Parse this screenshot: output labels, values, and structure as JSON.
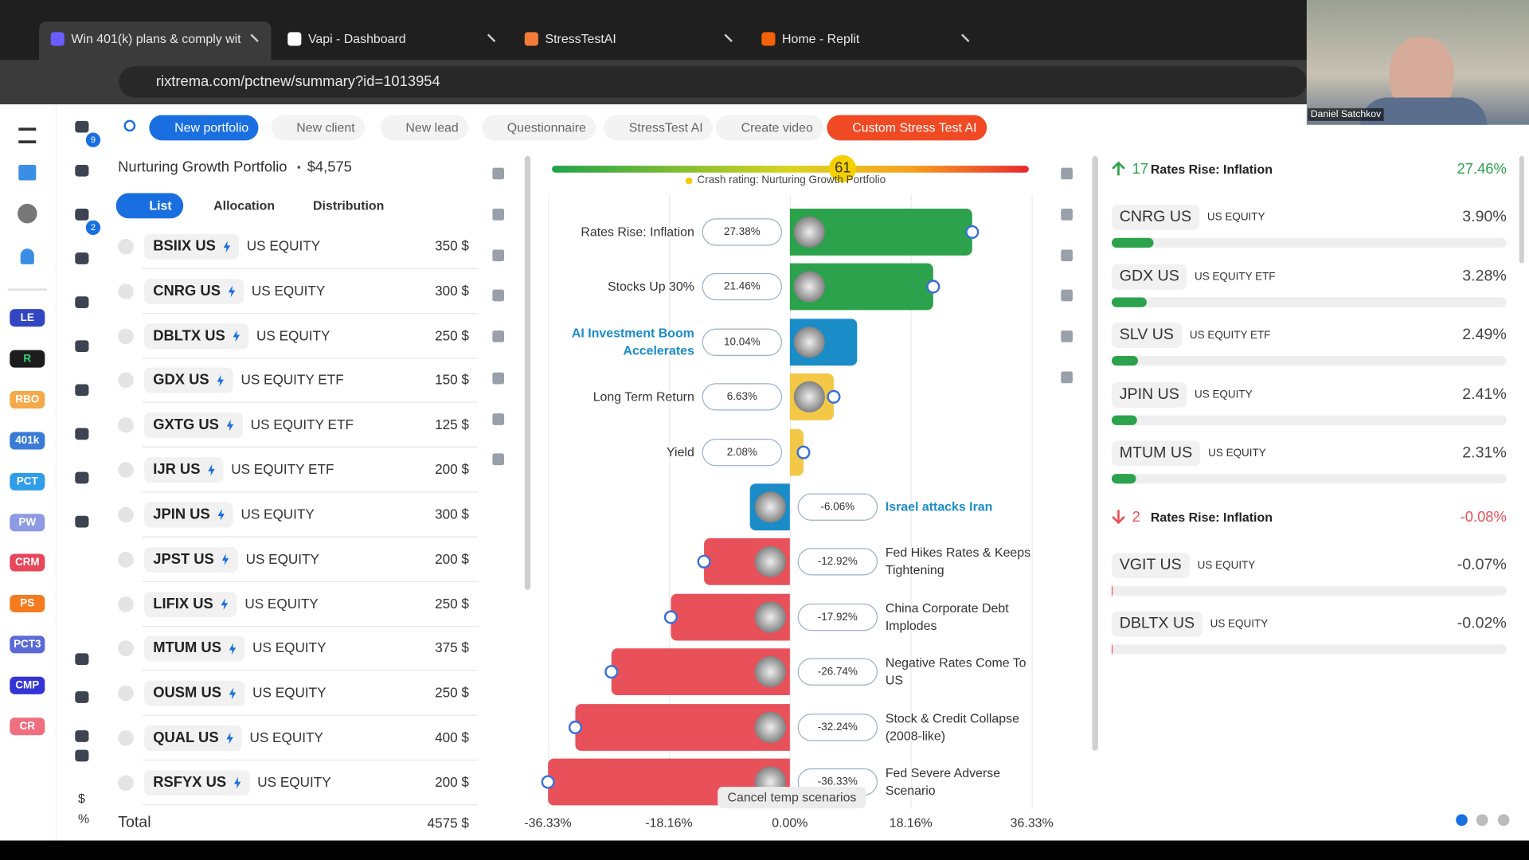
{
  "browser": {
    "tabs": [
      "Win 401(k) plans & comply wit",
      "Vapi - Dashboard",
      "StressTestAI",
      "Home - Replit"
    ],
    "url": "rixtrema.com/pctnew/summary?id=1013954"
  },
  "webcam": {
    "name": "Daniel Satchkov"
  },
  "sidebar": {
    "apps": [
      {
        "label": "LE",
        "color": "#3346c2"
      },
      {
        "label": "R",
        "color": "#1c1c1c"
      },
      {
        "label": "RBO",
        "color": "#f4a94a"
      },
      {
        "label": "401k",
        "color": "#3a7bd5"
      },
      {
        "label": "PCT",
        "color": "#2f9de8"
      },
      {
        "label": "PW",
        "color": "#8d9be3"
      },
      {
        "label": "CRM",
        "color": "#e8465b"
      },
      {
        "label": "PS",
        "color": "#f47b20"
      },
      {
        "label": "PCT3",
        "color": "#5b6bd6"
      },
      {
        "label": "CMP",
        "color": "#3434d6"
      },
      {
        "label": "CR",
        "color": "#ef6f80"
      }
    ],
    "notifications": [
      9,
      2
    ],
    "footer": [
      "$",
      "%"
    ]
  },
  "toolbar": {
    "buttons": [
      "New portfolio",
      "New client",
      "New lead",
      "Questionnaire",
      "StressTest AI",
      "Create video",
      "Custom Stress Test AI"
    ]
  },
  "portfolio": {
    "title": "Nurturing Growth Portfolio",
    "value": "$4,575",
    "tabs": [
      "List",
      "Allocation",
      "Distribution"
    ],
    "holdings": [
      {
        "ticker": "BSIIX US",
        "type": "US EQUITY",
        "amount": "350 $"
      },
      {
        "ticker": "CNRG US",
        "type": "US EQUITY",
        "amount": "300 $"
      },
      {
        "ticker": "DBLTX US",
        "type": "US EQUITY",
        "amount": "250 $"
      },
      {
        "ticker": "GDX US",
        "type": "US EQUITY ETF",
        "amount": "150 $"
      },
      {
        "ticker": "GXTG US",
        "type": "US EQUITY ETF",
        "amount": "125 $"
      },
      {
        "ticker": "IJR US",
        "type": "US EQUITY ETF",
        "amount": "200 $"
      },
      {
        "ticker": "JPIN US",
        "type": "US EQUITY",
        "amount": "300 $"
      },
      {
        "ticker": "JPST US",
        "type": "US EQUITY",
        "amount": "200 $"
      },
      {
        "ticker": "LIFIX US",
        "type": "US EQUITY",
        "amount": "250 $"
      },
      {
        "ticker": "MTUM US",
        "type": "US EQUITY",
        "amount": "375 $"
      },
      {
        "ticker": "OUSM US",
        "type": "US EQUITY",
        "amount": "250 $"
      },
      {
        "ticker": "QUAL US",
        "type": "US EQUITY",
        "amount": "400 $"
      },
      {
        "ticker": "RSFYX US",
        "type": "US EQUITY",
        "amount": "200 $"
      }
    ],
    "total_label": "Total",
    "total": "4575 $"
  },
  "stress_test": {
    "gauge": {
      "value": 61,
      "lim": [
        0,
        100
      ],
      "caption": "Crash rating: Nurturing Growth Portfolio"
    },
    "scenarios": [
      {
        "name": "Rates Rise: Inflation",
        "value": 27.38,
        "value_label": "27.38%",
        "color": "#2ca24c"
      },
      {
        "name": "Stocks Up 30%",
        "value": 21.46,
        "value_label": "21.46%",
        "color": "#2ca24c"
      },
      {
        "name": "AI Investment Boom Accelerates",
        "value": 10.04,
        "value_label": "10.04%",
        "color": "#1a8cc8",
        "label_color": "#1a8cc8"
      },
      {
        "name": "Long Term Return",
        "value": 6.63,
        "value_label": "6.63%",
        "color": "#f3c846"
      },
      {
        "name": "Yield",
        "value": 2.08,
        "value_label": "2.08%",
        "color": "#f3c846"
      },
      {
        "name": "Israel attacks Iran",
        "value": -6.06,
        "value_label": "-6.06%",
        "color": "#1a8cc8",
        "label_color": "#1a8cc8"
      },
      {
        "name": "Fed Hikes Rates & Keeps Tightening",
        "value": -12.92,
        "value_label": "-12.92%",
        "color": "#e8515a"
      },
      {
        "name": "China Corporate Debt Implodes",
        "value": -17.92,
        "value_label": "-17.92%",
        "color": "#e8515a"
      },
      {
        "name": "Negative Rates Come To US",
        "value": -26.74,
        "value_label": "-26.74%",
        "color": "#e8515a"
      },
      {
        "name": "Stock & Credit Collapse (2008-like)",
        "value": -32.24,
        "value_label": "-32.24%",
        "color": "#e8515a"
      },
      {
        "name": "Fed Severe Adverse Scenario",
        "value": -36.33,
        "value_label": "-36.33%",
        "color": "#e8515a"
      }
    ],
    "xlim": [
      -36.6,
      36.6
    ],
    "xticks": [
      {
        "value": -36.33,
        "label": "-36.33%"
      },
      {
        "value": -18.16,
        "label": "-18.16%"
      },
      {
        "value": 0,
        "label": "0.00%"
      },
      {
        "value": 18.16,
        "label": "18.16%"
      },
      {
        "value": 36.33,
        "label": "36.33%"
      }
    ],
    "button": "Cancel temp scenarios"
  },
  "impact": {
    "xlim": [
      0,
      37
    ],
    "groups": [
      {
        "direction": "up",
        "count": 17,
        "scenario": "Rates Rise: Inflation",
        "total": "27.46%",
        "color": "#2ca24c",
        "items": [
          {
            "ticker": "CNRG US",
            "type": "US EQUITY",
            "value": 3.9,
            "label": "3.90%"
          },
          {
            "ticker": "GDX US",
            "type": "US EQUITY ETF",
            "value": 3.28,
            "label": "3.28%"
          },
          {
            "ticker": "SLV US",
            "type": "US EQUITY ETF",
            "value": 2.49,
            "label": "2.49%"
          },
          {
            "ticker": "JPIN US",
            "type": "US EQUITY",
            "value": 2.41,
            "label": "2.41%"
          },
          {
            "ticker": "MTUM US",
            "type": "US EQUITY",
            "value": 2.31,
            "label": "2.31%"
          }
        ]
      },
      {
        "direction": "down",
        "count": 2,
        "scenario": "Rates Rise: Inflation",
        "total": "-0.08%",
        "color": "#e8515a",
        "items": [
          {
            "ticker": "VGIT US",
            "type": "US EQUITY",
            "value": -0.07,
            "label": "-0.07%"
          },
          {
            "ticker": "DBLTX US",
            "type": "US EQUITY",
            "value": -0.02,
            "label": "-0.02%"
          }
        ]
      }
    ]
  }
}
